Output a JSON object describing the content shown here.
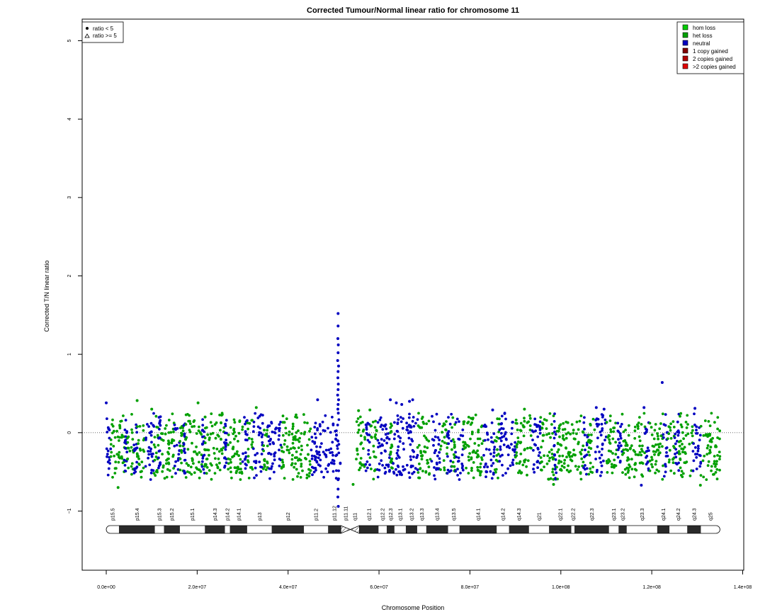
{
  "chart_data": {
    "type": "scatter",
    "title": "Corrected Tumour/Normal linear ratio for chromosome  11",
    "xlabel": "Chromosome Position",
    "ylabel": "Corrected T/N linear ratio",
    "xlim": [
      0,
      140000000
    ],
    "ylim": [
      -1.75,
      5.3
    ],
    "x_ticks": [
      0,
      20000000,
      40000000,
      60000000,
      80000000,
      100000000,
      120000000,
      140000000
    ],
    "x_tick_labels": [
      "0.0e+00",
      "2.0e+07",
      "4.0e+07",
      "6.0e+07",
      "8.0e+07",
      "1.0e+08",
      "1.2e+08",
      "1.4e+08"
    ],
    "y_ticks": [
      -1,
      0,
      1,
      2,
      3,
      4,
      5
    ],
    "y_tick_labels": [
      "−1",
      "0",
      "1",
      "2",
      "3",
      "4",
      "5"
    ],
    "reference_line_y": 0,
    "centromere": [
      51500000,
      55000000
    ],
    "chromosome_length": 135000000,
    "bulk_ratio_range": [
      -0.52,
      0.15
    ],
    "shape_legend": {
      "placement": "top-left",
      "entries": [
        {
          "label": "ratio < 5",
          "shape": "filled-circle"
        },
        {
          "label": "ratio >= 5",
          "shape": "open-triangle"
        }
      ]
    },
    "color_legend": {
      "placement": "top-right",
      "entries": [
        {
          "label": "hom loss",
          "color": "#00cc00"
        },
        {
          "label": "het loss",
          "color": "#00a000"
        },
        {
          "label": "neutral",
          "color": "#0000c0"
        },
        {
          "label": "1 copy gained",
          "color": "#800000"
        },
        {
          "label": "2 copies gained",
          "color": "#b00000"
        },
        {
          "label": ">2 copies gained",
          "color": "#e00000"
        }
      ]
    },
    "segments": [
      {
        "start": 0,
        "end": 1000000,
        "state": "neutral"
      },
      {
        "start": 1000000,
        "end": 4000000,
        "state": "het loss"
      },
      {
        "start": 4000000,
        "end": 4600000,
        "state": "neutral"
      },
      {
        "start": 4600000,
        "end": 6000000,
        "state": "het loss"
      },
      {
        "start": 6000000,
        "end": 6800000,
        "state": "neutral"
      },
      {
        "start": 6800000,
        "end": 8500000,
        "state": "het loss"
      },
      {
        "start": 8500000,
        "end": 10500000,
        "state": "neutral"
      },
      {
        "start": 10500000,
        "end": 11500000,
        "state": "het loss"
      },
      {
        "start": 11500000,
        "end": 12000000,
        "state": "neutral"
      },
      {
        "start": 12000000,
        "end": 15000000,
        "state": "het loss"
      },
      {
        "start": 15000000,
        "end": 16200000,
        "state": "neutral"
      },
      {
        "start": 16200000,
        "end": 17000000,
        "state": "het loss"
      },
      {
        "start": 17000000,
        "end": 17400000,
        "state": "neutral"
      },
      {
        "start": 17400000,
        "end": 21000000,
        "state": "het loss"
      },
      {
        "start": 21000000,
        "end": 21600000,
        "state": "neutral"
      },
      {
        "start": 21600000,
        "end": 26000000,
        "state": "het loss"
      },
      {
        "start": 26000000,
        "end": 26500000,
        "state": "neutral"
      },
      {
        "start": 26500000,
        "end": 30000000,
        "state": "het loss"
      },
      {
        "start": 30000000,
        "end": 31000000,
        "state": "neutral"
      },
      {
        "start": 31000000,
        "end": 32200000,
        "state": "het loss"
      },
      {
        "start": 32200000,
        "end": 34500000,
        "state": "neutral"
      },
      {
        "start": 34500000,
        "end": 35500000,
        "state": "het loss"
      },
      {
        "start": 35500000,
        "end": 38500000,
        "state": "neutral"
      },
      {
        "start": 38500000,
        "end": 45000000,
        "state": "het loss"
      },
      {
        "start": 45000000,
        "end": 51500000,
        "state": "neutral"
      },
      {
        "start": 55000000,
        "end": 57000000,
        "state": "het loss"
      },
      {
        "start": 57000000,
        "end": 58000000,
        "state": "neutral"
      },
      {
        "start": 58000000,
        "end": 59500000,
        "state": "het loss"
      },
      {
        "start": 59500000,
        "end": 62500000,
        "state": "neutral"
      },
      {
        "start": 62500000,
        "end": 63000000,
        "state": "het loss"
      },
      {
        "start": 63000000,
        "end": 68500000,
        "state": "neutral"
      },
      {
        "start": 68500000,
        "end": 71500000,
        "state": "het loss"
      },
      {
        "start": 71500000,
        "end": 73500000,
        "state": "neutral"
      },
      {
        "start": 73500000,
        "end": 75000000,
        "state": "het loss"
      },
      {
        "start": 75000000,
        "end": 76000000,
        "state": "neutral"
      },
      {
        "start": 76000000,
        "end": 76800000,
        "state": "het loss"
      },
      {
        "start": 76800000,
        "end": 78500000,
        "state": "neutral"
      },
      {
        "start": 78500000,
        "end": 83000000,
        "state": "het loss"
      },
      {
        "start": 83000000,
        "end": 85500000,
        "state": "neutral"
      },
      {
        "start": 85500000,
        "end": 86500000,
        "state": "het loss"
      },
      {
        "start": 86500000,
        "end": 90000000,
        "state": "neutral"
      },
      {
        "start": 90000000,
        "end": 93500000,
        "state": "het loss"
      },
      {
        "start": 93500000,
        "end": 95500000,
        "state": "neutral"
      },
      {
        "start": 95500000,
        "end": 98500000,
        "state": "het loss"
      },
      {
        "start": 98500000,
        "end": 99000000,
        "state": "neutral"
      },
      {
        "start": 99000000,
        "end": 105000000,
        "state": "het loss"
      },
      {
        "start": 105000000,
        "end": 106000000,
        "state": "neutral"
      },
      {
        "start": 106000000,
        "end": 107500000,
        "state": "het loss"
      },
      {
        "start": 107500000,
        "end": 110000000,
        "state": "neutral"
      },
      {
        "start": 110000000,
        "end": 112500000,
        "state": "het loss"
      },
      {
        "start": 112500000,
        "end": 113500000,
        "state": "neutral"
      },
      {
        "start": 113500000,
        "end": 118500000,
        "state": "het loss"
      },
      {
        "start": 118500000,
        "end": 119500000,
        "state": "neutral"
      },
      {
        "start": 119500000,
        "end": 122500000,
        "state": "het loss"
      },
      {
        "start": 122500000,
        "end": 123500000,
        "state": "neutral"
      },
      {
        "start": 123500000,
        "end": 125000000,
        "state": "het loss"
      },
      {
        "start": 125000000,
        "end": 126000000,
        "state": "neutral"
      },
      {
        "start": 126000000,
        "end": 129000000,
        "state": "het loss"
      },
      {
        "start": 129000000,
        "end": 130800000,
        "state": "neutral"
      },
      {
        "start": 130800000,
        "end": 135000000,
        "state": "het loss"
      }
    ],
    "notable_points": [
      {
        "x": 51000000,
        "y": 1.52,
        "state": "neutral"
      },
      {
        "x": 51000000,
        "y": 1.36,
        "state": "neutral"
      },
      {
        "x": 50950000,
        "y": 1.2,
        "state": "neutral"
      },
      {
        "x": 51050000,
        "y": 1.12,
        "state": "neutral"
      },
      {
        "x": 51000000,
        "y": 1.02,
        "state": "neutral"
      },
      {
        "x": 50900000,
        "y": 0.92,
        "state": "neutral"
      },
      {
        "x": 51100000,
        "y": 0.85,
        "state": "neutral"
      },
      {
        "x": 51000000,
        "y": 0.78,
        "state": "neutral"
      },
      {
        "x": 50950000,
        "y": 0.7,
        "state": "neutral"
      },
      {
        "x": 51050000,
        "y": 0.62,
        "state": "neutral"
      },
      {
        "x": 51000000,
        "y": 0.55,
        "state": "neutral"
      },
      {
        "x": 50900000,
        "y": 0.48,
        "state": "neutral"
      },
      {
        "x": 51100000,
        "y": 0.42,
        "state": "neutral"
      },
      {
        "x": 51000000,
        "y": 0.36,
        "state": "neutral"
      },
      {
        "x": 50950000,
        "y": 0.3,
        "state": "neutral"
      },
      {
        "x": 51050000,
        "y": 0.25,
        "state": "neutral"
      },
      {
        "x": 51000000,
        "y": -0.6,
        "state": "neutral"
      },
      {
        "x": 51000000,
        "y": -0.72,
        "state": "neutral"
      },
      {
        "x": 50950000,
        "y": -0.82,
        "state": "neutral"
      },
      {
        "x": 51050000,
        "y": -0.94,
        "state": "neutral"
      },
      {
        "x": 122300000,
        "y": 0.64,
        "state": "neutral"
      },
      {
        "x": 46500000,
        "y": 0.42,
        "state": "neutral"
      },
      {
        "x": 62500000,
        "y": 0.42,
        "state": "neutral"
      },
      {
        "x": 63800000,
        "y": 0.38,
        "state": "neutral"
      },
      {
        "x": 65000000,
        "y": 0.36,
        "state": "neutral"
      },
      {
        "x": 66700000,
        "y": 0.4,
        "state": "neutral"
      },
      {
        "x": 67400000,
        "y": 0.42,
        "state": "neutral"
      },
      {
        "x": 6800000,
        "y": 0.41,
        "state": "het loss"
      },
      {
        "x": 20200000,
        "y": 0.38,
        "state": "het loss"
      },
      {
        "x": 0,
        "y": 0.38,
        "state": "neutral"
      },
      {
        "x": 33000000,
        "y": 0.32,
        "state": "het loss"
      },
      {
        "x": 10000000,
        "y": 0.3,
        "state": "het loss"
      },
      {
        "x": 55500000,
        "y": 0.28,
        "state": "het loss"
      },
      {
        "x": 58000000,
        "y": 0.29,
        "state": "het loss"
      },
      {
        "x": 85000000,
        "y": 0.29,
        "state": "neutral"
      },
      {
        "x": 92000000,
        "y": 0.3,
        "state": "het loss"
      },
      {
        "x": 107800000,
        "y": 0.32,
        "state": "neutral"
      },
      {
        "x": 109500000,
        "y": 0.3,
        "state": "neutral"
      },
      {
        "x": 118300000,
        "y": 0.32,
        "state": "neutral"
      },
      {
        "x": 129500000,
        "y": 0.31,
        "state": "neutral"
      },
      {
        "x": 54300000,
        "y": -0.66,
        "state": "het loss"
      },
      {
        "x": 98400000,
        "y": -0.66,
        "state": "het loss"
      },
      {
        "x": 117700000,
        "y": -0.67,
        "state": "neutral"
      },
      {
        "x": 130700000,
        "y": -0.67,
        "state": "het loss"
      },
      {
        "x": 2600000,
        "y": -0.7,
        "state": "het loss"
      }
    ],
    "ideogram": {
      "bands": [
        {
          "name": "p15.5",
          "start": 0,
          "end": 2800000,
          "stain": "gneg"
        },
        {
          "name": "p15.4",
          "start": 2800000,
          "end": 10700000,
          "stain": "gpos50"
        },
        {
          "name": "p15.3",
          "start": 10700000,
          "end": 12700000,
          "stain": "gneg"
        },
        {
          "name": "p15.2",
          "start": 12700000,
          "end": 16200000,
          "stain": "gpos50"
        },
        {
          "name": "p15.1",
          "start": 16200000,
          "end": 21700000,
          "stain": "gneg"
        },
        {
          "name": "p14.3",
          "start": 21700000,
          "end": 26100000,
          "stain": "gpos100"
        },
        {
          "name": "p14.2",
          "start": 26100000,
          "end": 27200000,
          "stain": "gneg"
        },
        {
          "name": "p14.1",
          "start": 27200000,
          "end": 31000000,
          "stain": "gpos75"
        },
        {
          "name": "p13",
          "start": 31000000,
          "end": 36400000,
          "stain": "gneg"
        },
        {
          "name": "p12",
          "start": 36400000,
          "end": 43500000,
          "stain": "gpos100"
        },
        {
          "name": "p11.2",
          "start": 43500000,
          "end": 48800000,
          "stain": "gneg"
        },
        {
          "name": "p11.12",
          "start": 48800000,
          "end": 51600000,
          "stain": "gpos75"
        },
        {
          "name": "p11.11",
          "start": 51600000,
          "end": 53700000,
          "stain": "acen"
        },
        {
          "name": "q11",
          "start": 53700000,
          "end": 55700000,
          "stain": "acen"
        },
        {
          "name": "q12.1",
          "start": 55700000,
          "end": 59900000,
          "stain": "gpos75"
        },
        {
          "name": "q12.2",
          "start": 59900000,
          "end": 61700000,
          "stain": "gneg"
        },
        {
          "name": "q12.3",
          "start": 61700000,
          "end": 63400000,
          "stain": "gpos25"
        },
        {
          "name": "q13.1",
          "start": 63400000,
          "end": 65900000,
          "stain": "gneg"
        },
        {
          "name": "q13.2",
          "start": 65900000,
          "end": 68400000,
          "stain": "gpos25"
        },
        {
          "name": "q13.3",
          "start": 68400000,
          "end": 70400000,
          "stain": "gneg"
        },
        {
          "name": "q13.4",
          "start": 70400000,
          "end": 75200000,
          "stain": "gpos50"
        },
        {
          "name": "q13.5",
          "start": 75200000,
          "end": 77700000,
          "stain": "gneg"
        },
        {
          "name": "q14.1",
          "start": 77700000,
          "end": 85900000,
          "stain": "gpos100"
        },
        {
          "name": "q14.2",
          "start": 85900000,
          "end": 88600000,
          "stain": "gneg"
        },
        {
          "name": "q14.3",
          "start": 88600000,
          "end": 93000000,
          "stain": "gpos100"
        },
        {
          "name": "q21",
          "start": 93000000,
          "end": 97400000,
          "stain": "gneg"
        },
        {
          "name": "q22.1",
          "start": 97400000,
          "end": 102300000,
          "stain": "gpos100"
        },
        {
          "name": "q22.2",
          "start": 102300000,
          "end": 103000000,
          "stain": "gneg"
        },
        {
          "name": "q22.3",
          "start": 103000000,
          "end": 110600000,
          "stain": "gpos100"
        },
        {
          "name": "q23.1",
          "start": 110600000,
          "end": 112700000,
          "stain": "gneg"
        },
        {
          "name": "q23.2",
          "start": 112700000,
          "end": 114500000,
          "stain": "gpos50"
        },
        {
          "name": "q23.3",
          "start": 114500000,
          "end": 121200000,
          "stain": "gneg"
        },
        {
          "name": "q24.1",
          "start": 121200000,
          "end": 123900000,
          "stain": "gpos50"
        },
        {
          "name": "q24.2",
          "start": 123900000,
          "end": 127800000,
          "stain": "gneg"
        },
        {
          "name": "q24.3",
          "start": 127800000,
          "end": 130800000,
          "stain": "gpos50"
        },
        {
          "name": "q25",
          "start": 130800000,
          "end": 135000000,
          "stain": "gneg"
        }
      ]
    }
  }
}
